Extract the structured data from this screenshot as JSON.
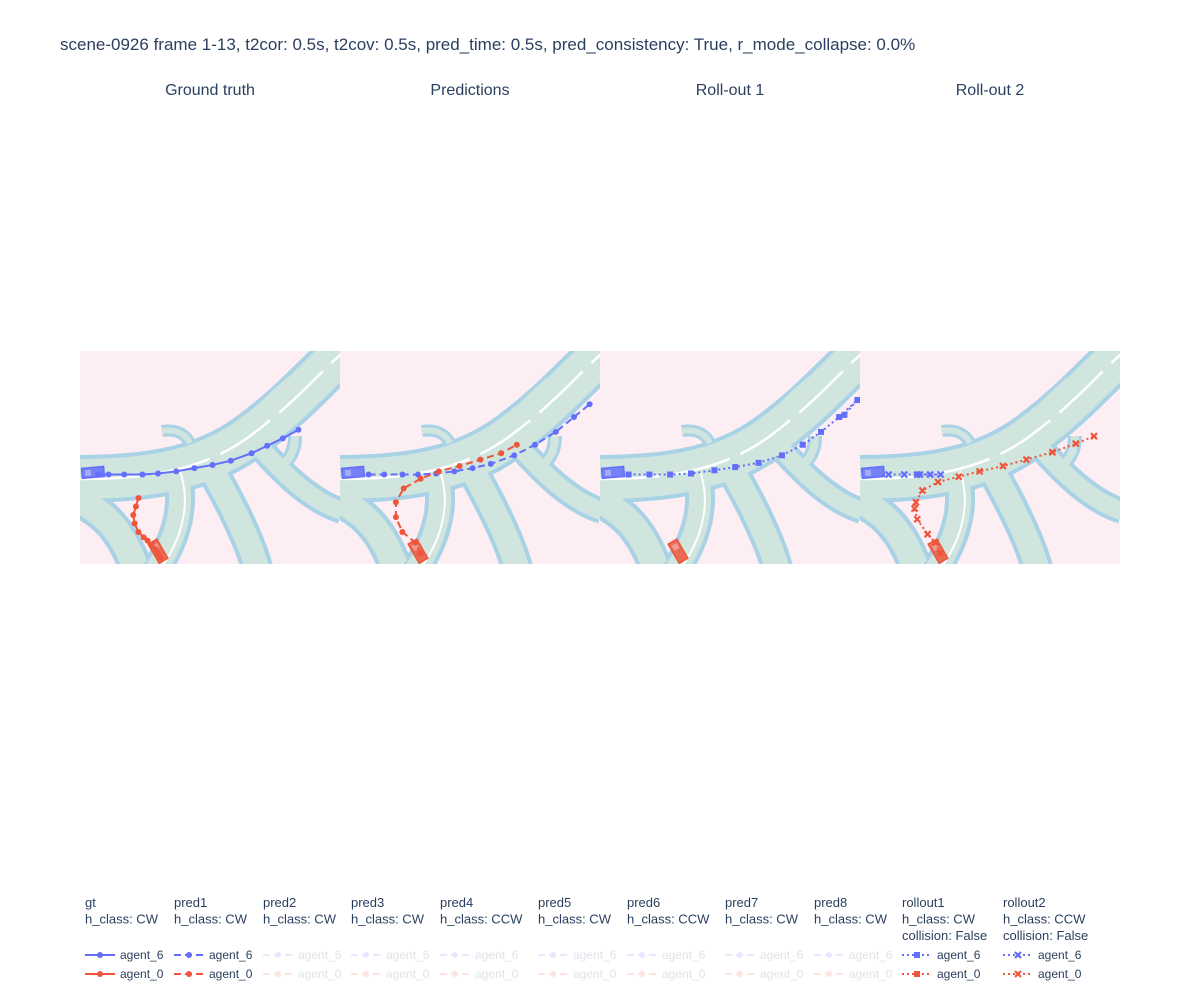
{
  "figure": {
    "title": "scene-0926 frame 1-13, t2cor: 0.5s, t2cov: 0.5s, pred_time: 0.5s, pred_consistency: True, r_mode_collapse: 0.0%"
  },
  "colors": {
    "agent_6": "#636efa",
    "agent_0": "#ef553b",
    "background": "#fdeef3",
    "drivable": "#cfe5de",
    "lane_edge": "#a9d2e6",
    "divider": "#ffffff"
  },
  "chart_data": {
    "type": "scatter",
    "subplots": [
      {
        "id": "gt",
        "title": "Ground truth"
      },
      {
        "id": "pred",
        "title": "Predictions"
      },
      {
        "id": "r1",
        "title": "Roll-out 1"
      },
      {
        "id": "r2",
        "title": "Roll-out 2"
      }
    ],
    "axes": {
      "visible": false,
      "grid": false
    },
    "legend_position": "bottom",
    "legend": [
      {
        "group": "gt",
        "lines": [
          "gt",
          "h_class: CW"
        ],
        "style": "solid",
        "marker": "circle",
        "opacity": 1
      },
      {
        "group": "pred1",
        "lines": [
          "pred1",
          "h_class: CW"
        ],
        "style": "dash",
        "marker": "circle",
        "opacity": 1
      },
      {
        "group": "pred2",
        "lines": [
          "pred2",
          "h_class: CW"
        ],
        "style": "dash",
        "marker": "circle",
        "opacity": 0.15
      },
      {
        "group": "pred3",
        "lines": [
          "pred3",
          "h_class: CW"
        ],
        "style": "dash",
        "marker": "circle",
        "opacity": 0.15
      },
      {
        "group": "pred4",
        "lines": [
          "pred4",
          "h_class: CCW"
        ],
        "style": "dash",
        "marker": "circle",
        "opacity": 0.15
      },
      {
        "group": "pred5",
        "lines": [
          "pred5",
          "h_class: CW"
        ],
        "style": "dash",
        "marker": "circle",
        "opacity": 0.15
      },
      {
        "group": "pred6",
        "lines": [
          "pred6",
          "h_class: CCW"
        ],
        "style": "dash",
        "marker": "circle",
        "opacity": 0.15
      },
      {
        "group": "pred7",
        "lines": [
          "pred7",
          "h_class: CW"
        ],
        "style": "dash",
        "marker": "circle",
        "opacity": 0.15
      },
      {
        "group": "pred8",
        "lines": [
          "pred8",
          "h_class: CW"
        ],
        "style": "dash",
        "marker": "circle",
        "opacity": 0.15
      },
      {
        "group": "rollout1",
        "lines": [
          "rollout1",
          "h_class: CW",
          "collision: False"
        ],
        "style": "dot",
        "marker": "square",
        "opacity": 1
      },
      {
        "group": "rollout2",
        "lines": [
          "rollout2",
          "h_class: CCW",
          "collision: False"
        ],
        "style": "dot",
        "marker": "x",
        "opacity": 1
      }
    ],
    "series_names": [
      "agent_6",
      "agent_0"
    ],
    "traces": {
      "gt": {
        "agent_6": [
          [
            0.07,
            0.58
          ],
          [
            0.11,
            0.58
          ],
          [
            0.17,
            0.58
          ],
          [
            0.24,
            0.58
          ],
          [
            0.3,
            0.575
          ],
          [
            0.37,
            0.565
          ],
          [
            0.44,
            0.55
          ],
          [
            0.51,
            0.535
          ],
          [
            0.58,
            0.515
          ],
          [
            0.66,
            0.48
          ],
          [
            0.72,
            0.445
          ],
          [
            0.78,
            0.41
          ],
          [
            0.84,
            0.37
          ]
        ],
        "agent_0": [
          [
            0.225,
            0.69
          ],
          [
            0.215,
            0.73
          ],
          [
            0.205,
            0.77
          ],
          [
            0.21,
            0.81
          ],
          [
            0.225,
            0.85
          ],
          [
            0.245,
            0.875
          ],
          [
            0.26,
            0.89
          ],
          [
            0.275,
            0.91
          ],
          [
            0.29,
            0.93
          ],
          [
            0.3,
            0.95
          ],
          [
            0.31,
            0.97
          ]
        ]
      },
      "pred": {
        "agent_6": [
          [
            0.11,
            0.58
          ],
          [
            0.17,
            0.58
          ],
          [
            0.24,
            0.58
          ],
          [
            0.3,
            0.58
          ],
          [
            0.37,
            0.575
          ],
          [
            0.44,
            0.565
          ],
          [
            0.51,
            0.55
          ],
          [
            0.58,
            0.53
          ],
          [
            0.67,
            0.49
          ],
          [
            0.75,
            0.44
          ],
          [
            0.83,
            0.38
          ],
          [
            0.9,
            0.31
          ],
          [
            0.96,
            0.25
          ]
        ],
        "agent_0": [
          [
            0.31,
            0.95
          ],
          [
            0.29,
            0.9
          ],
          [
            0.24,
            0.85
          ],
          [
            0.215,
            0.78
          ],
          [
            0.215,
            0.71
          ],
          [
            0.245,
            0.645
          ],
          [
            0.31,
            0.6
          ],
          [
            0.38,
            0.565
          ],
          [
            0.46,
            0.54
          ],
          [
            0.54,
            0.51
          ],
          [
            0.62,
            0.48
          ],
          [
            0.68,
            0.44
          ]
        ]
      },
      "r1": {
        "agent_6": [
          [
            0.11,
            0.58
          ],
          [
            0.19,
            0.58
          ],
          [
            0.27,
            0.58
          ],
          [
            0.35,
            0.575
          ],
          [
            0.44,
            0.56
          ],
          [
            0.52,
            0.545
          ],
          [
            0.61,
            0.525
          ],
          [
            0.7,
            0.49
          ],
          [
            0.78,
            0.44
          ],
          [
            0.85,
            0.38
          ],
          [
            0.92,
            0.31
          ],
          [
            0.99,
            0.23
          ],
          [
            0.94,
            0.3
          ]
        ],
        "agent_0": []
      },
      "r2": {
        "agent_6": [
          [
            0.11,
            0.58
          ],
          [
            0.17,
            0.58
          ],
          [
            0.22,
            0.58
          ],
          [
            0.27,
            0.58
          ],
          [
            0.31,
            0.58
          ],
          [
            0.23,
            0.58
          ]
        ],
        "agent_0": [
          [
            0.31,
            0.95
          ],
          [
            0.29,
            0.9
          ],
          [
            0.26,
            0.86
          ],
          [
            0.22,
            0.79
          ],
          [
            0.21,
            0.74
          ],
          [
            0.215,
            0.71
          ],
          [
            0.24,
            0.655
          ],
          [
            0.3,
            0.615
          ],
          [
            0.38,
            0.59
          ],
          [
            0.46,
            0.565
          ],
          [
            0.55,
            0.54
          ],
          [
            0.64,
            0.51
          ],
          [
            0.74,
            0.475
          ],
          [
            0.83,
            0.435
          ],
          [
            0.9,
            0.4
          ]
        ]
      }
    },
    "vehicles": {
      "gt": {
        "agent_6": [
          0.05,
          0.57,
          -5
        ],
        "agent_0": [
          0.3,
          0.94,
          60
        ]
      },
      "pred": {
        "agent_6": [
          0.05,
          0.57,
          -5
        ],
        "agent_0": [
          0.3,
          0.94,
          60
        ]
      },
      "r1": {
        "agent_6": [
          0.05,
          0.57,
          -5
        ],
        "agent_0": [
          0.3,
          0.94,
          60
        ]
      },
      "r2": {
        "agent_6": [
          0.05,
          0.57,
          -5
        ],
        "agent_0": [
          0.3,
          0.94,
          60
        ]
      }
    }
  }
}
